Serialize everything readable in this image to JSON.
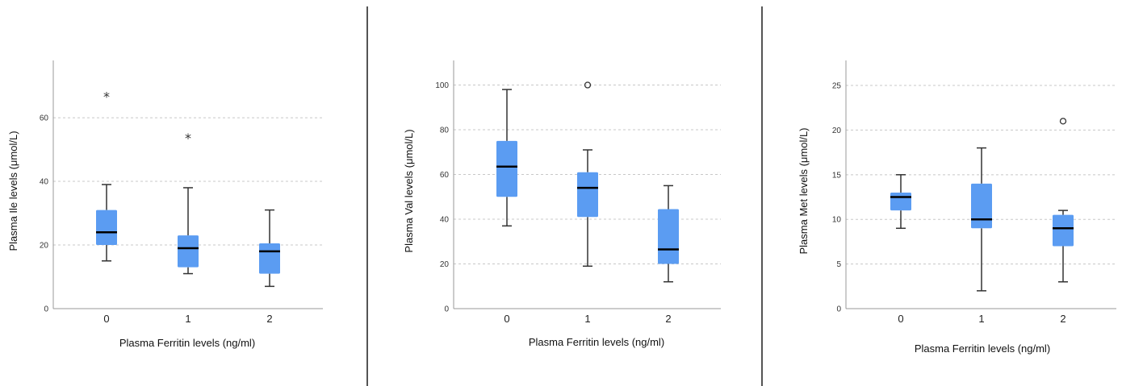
{
  "colors": {
    "box_fill": "#5b9cf2",
    "whisker": "#333333",
    "median": "#000000",
    "grid": "#c8c8c8",
    "divider": "#555555",
    "axis": "#999999"
  },
  "chart_data": [
    {
      "type": "box",
      "xlabel": "Plasma Ferritin levels (ng/ml)",
      "ylabel": "Plasma Ile levels (μmol/L)",
      "categories": [
        "0",
        "1",
        "2"
      ],
      "ylim": [
        0,
        78
      ],
      "yticks": [
        0,
        20,
        40,
        60
      ],
      "grid": true,
      "boxes": [
        {
          "min": 15,
          "q1": 20,
          "median": 24,
          "q3": 31,
          "max": 39,
          "outliers": [
            {
              "value": 67,
              "marker": "star"
            }
          ]
        },
        {
          "min": 11,
          "q1": 13,
          "median": 19,
          "q3": 23,
          "max": 38,
          "outliers": [
            {
              "value": 54,
              "marker": "star"
            }
          ]
        },
        {
          "min": 7,
          "q1": 11,
          "median": 18,
          "q3": 20.5,
          "max": 31,
          "outliers": []
        }
      ]
    },
    {
      "type": "box",
      "xlabel": "Plasma Ferritin levels (ng/ml)",
      "ylabel": "Plasma Val levels (μmol/L)",
      "categories": [
        "0",
        "1",
        "2"
      ],
      "ylim": [
        0,
        111
      ],
      "yticks": [
        0,
        20,
        40,
        60,
        80,
        100
      ],
      "grid": true,
      "boxes": [
        {
          "min": 37,
          "q1": 50,
          "median": 63.5,
          "q3": 75,
          "max": 98,
          "outliers": []
        },
        {
          "min": 19,
          "q1": 41,
          "median": 54,
          "q3": 61,
          "max": 71,
          "outliers": [
            {
              "value": 100,
              "marker": "circle"
            }
          ]
        },
        {
          "min": 12,
          "q1": 20,
          "median": 26.5,
          "q3": 44.5,
          "max": 55,
          "outliers": []
        }
      ]
    },
    {
      "type": "box",
      "xlabel": "Plasma Ferritin levels (ng/ml)",
      "ylabel": "Plasma Met levels (μmol/L)",
      "categories": [
        "0",
        "1",
        "2"
      ],
      "ylim": [
        0,
        27.8
      ],
      "yticks": [
        0,
        5,
        10,
        15,
        20,
        25
      ],
      "grid": true,
      "boxes": [
        {
          "min": 9,
          "q1": 11,
          "median": 12.5,
          "q3": 13,
          "max": 15,
          "outliers": []
        },
        {
          "min": 2,
          "q1": 9,
          "median": 10,
          "q3": 14,
          "max": 18,
          "outliers": []
        },
        {
          "min": 3,
          "q1": 7,
          "median": 9,
          "q3": 10.5,
          "max": 11,
          "outliers": [
            {
              "value": 21,
              "marker": "circle"
            }
          ]
        }
      ]
    }
  ]
}
